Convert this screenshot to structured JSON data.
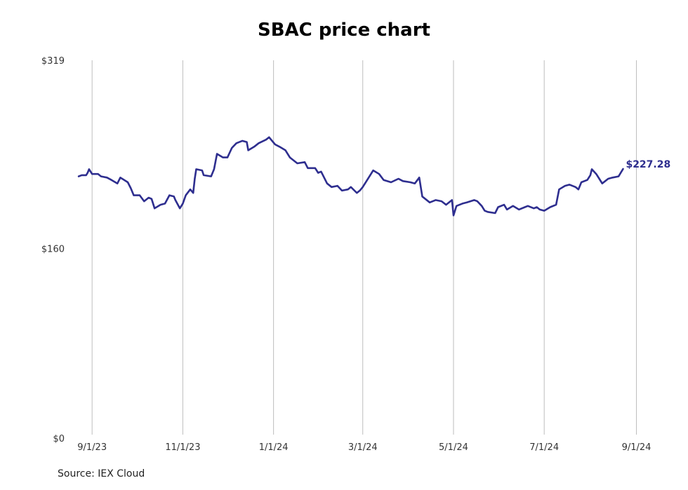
{
  "page_title": "SBAC price chart",
  "source": "Source: IEX Cloud",
  "colors": {
    "line": "#2e2e8f",
    "grid": "#bdbdbd",
    "text": "#333333"
  },
  "chart_data": {
    "type": "line",
    "title": "SBAC price chart",
    "xlabel": "",
    "ylabel": "",
    "ylim": [
      0,
      319
    ],
    "yticks": [
      {
        "value": 0,
        "label": "$0"
      },
      {
        "value": 160,
        "label": "$160"
      },
      {
        "value": 319,
        "label": "$319"
      }
    ],
    "xlim": [
      "2023-08-22",
      "2024-09-05"
    ],
    "xticks": [
      {
        "date": "2023-09-01",
        "label": "9/1/23"
      },
      {
        "date": "2023-11-01",
        "label": "11/1/23"
      },
      {
        "date": "2024-01-01",
        "label": "1/1/24"
      },
      {
        "date": "2024-03-01",
        "label": "3/1/24"
      },
      {
        "date": "2024-05-01",
        "label": "5/1/24"
      },
      {
        "date": "2024-07-01",
        "label": "7/1/24"
      },
      {
        "date": "2024-09-01",
        "label": "9/1/24"
      }
    ],
    "grid": "vertical",
    "last_value_label": "$227.28",
    "series": [
      {
        "values": [
          [
            "2023-08-23",
            221
          ],
          [
            "2023-08-25",
            222
          ],
          [
            "2023-08-28",
            222
          ],
          [
            "2023-08-29",
            224
          ],
          [
            "2023-08-30",
            227
          ],
          [
            "2023-09-01",
            223
          ],
          [
            "2023-09-05",
            223
          ],
          [
            "2023-09-07",
            221
          ],
          [
            "2023-09-11",
            220
          ],
          [
            "2023-09-14",
            218
          ],
          [
            "2023-09-18",
            215
          ],
          [
            "2023-09-20",
            220
          ],
          [
            "2023-09-25",
            216
          ],
          [
            "2023-09-27",
            211
          ],
          [
            "2023-09-29",
            205
          ],
          [
            "2023-10-03",
            205
          ],
          [
            "2023-10-06",
            200
          ],
          [
            "2023-10-09",
            203
          ],
          [
            "2023-10-11",
            202
          ],
          [
            "2023-10-13",
            194
          ],
          [
            "2023-10-17",
            197
          ],
          [
            "2023-10-20",
            198
          ],
          [
            "2023-10-23",
            205
          ],
          [
            "2023-10-26",
            204
          ],
          [
            "2023-10-27",
            201
          ],
          [
            "2023-10-30",
            194
          ],
          [
            "2023-11-01",
            198
          ],
          [
            "2023-11-03",
            205
          ],
          [
            "2023-11-06",
            210
          ],
          [
            "2023-11-08",
            207
          ],
          [
            "2023-11-09",
            219
          ],
          [
            "2023-11-10",
            227
          ],
          [
            "2023-11-14",
            226
          ],
          [
            "2023-11-15",
            222
          ],
          [
            "2023-11-20",
            221
          ],
          [
            "2023-11-22",
            227
          ],
          [
            "2023-11-24",
            240
          ],
          [
            "2023-11-28",
            237
          ],
          [
            "2023-12-01",
            237
          ],
          [
            "2023-12-04",
            245
          ],
          [
            "2023-12-07",
            249
          ],
          [
            "2023-12-11",
            251
          ],
          [
            "2023-12-14",
            250
          ],
          [
            "2023-12-15",
            243
          ],
          [
            "2023-12-19",
            246
          ],
          [
            "2023-12-22",
            249
          ],
          [
            "2023-12-27",
            252
          ],
          [
            "2023-12-29",
            254
          ],
          [
            "2024-01-02",
            248
          ],
          [
            "2024-01-05",
            246
          ],
          [
            "2024-01-09",
            243
          ],
          [
            "2024-01-12",
            237
          ],
          [
            "2024-01-17",
            232
          ],
          [
            "2024-01-22",
            233
          ],
          [
            "2024-01-24",
            228
          ],
          [
            "2024-01-29",
            228
          ],
          [
            "2024-01-31",
            224
          ],
          [
            "2024-02-02",
            225
          ],
          [
            "2024-02-06",
            215
          ],
          [
            "2024-02-09",
            212
          ],
          [
            "2024-02-13",
            213
          ],
          [
            "2024-02-16",
            209
          ],
          [
            "2024-02-20",
            210
          ],
          [
            "2024-02-22",
            212
          ],
          [
            "2024-02-26",
            207
          ],
          [
            "2024-02-28",
            209
          ],
          [
            "2024-03-01",
            212
          ],
          [
            "2024-03-05",
            220
          ],
          [
            "2024-03-08",
            226
          ],
          [
            "2024-03-12",
            223
          ],
          [
            "2024-03-15",
            218
          ],
          [
            "2024-03-20",
            216
          ],
          [
            "2024-03-25",
            219
          ],
          [
            "2024-03-28",
            217
          ],
          [
            "2024-04-02",
            216
          ],
          [
            "2024-04-05",
            215
          ],
          [
            "2024-04-08",
            220
          ],
          [
            "2024-04-10",
            204
          ],
          [
            "2024-04-15",
            199
          ],
          [
            "2024-04-19",
            201
          ],
          [
            "2024-04-23",
            200
          ],
          [
            "2024-04-26",
            197
          ],
          [
            "2024-04-30",
            201
          ],
          [
            "2024-05-01",
            188
          ],
          [
            "2024-05-03",
            196
          ],
          [
            "2024-05-07",
            198
          ],
          [
            "2024-05-10",
            199
          ],
          [
            "2024-05-15",
            201
          ],
          [
            "2024-05-17",
            200
          ],
          [
            "2024-05-20",
            196
          ],
          [
            "2024-05-22",
            192
          ],
          [
            "2024-05-24",
            191
          ],
          [
            "2024-05-29",
            190
          ],
          [
            "2024-05-31",
            195
          ],
          [
            "2024-06-04",
            197
          ],
          [
            "2024-06-06",
            193
          ],
          [
            "2024-06-10",
            196
          ],
          [
            "2024-06-14",
            193
          ],
          [
            "2024-06-18",
            195
          ],
          [
            "2024-06-20",
            196
          ],
          [
            "2024-06-24",
            194
          ],
          [
            "2024-06-26",
            195
          ],
          [
            "2024-06-28",
            193
          ],
          [
            "2024-07-01",
            192
          ],
          [
            "2024-07-05",
            195
          ],
          [
            "2024-07-09",
            197
          ],
          [
            "2024-07-11",
            210
          ],
          [
            "2024-07-15",
            213
          ],
          [
            "2024-07-18",
            214
          ],
          [
            "2024-07-22",
            212
          ],
          [
            "2024-07-24",
            210
          ],
          [
            "2024-07-26",
            216
          ],
          [
            "2024-07-30",
            218
          ],
          [
            "2024-08-01",
            222
          ],
          [
            "2024-08-02",
            227
          ],
          [
            "2024-08-05",
            223
          ],
          [
            "2024-08-07",
            219
          ],
          [
            "2024-08-09",
            215
          ],
          [
            "2024-08-13",
            219
          ],
          [
            "2024-08-16",
            220
          ],
          [
            "2024-08-20",
            221
          ],
          [
            "2024-08-23",
            227.28
          ]
        ]
      }
    ]
  }
}
